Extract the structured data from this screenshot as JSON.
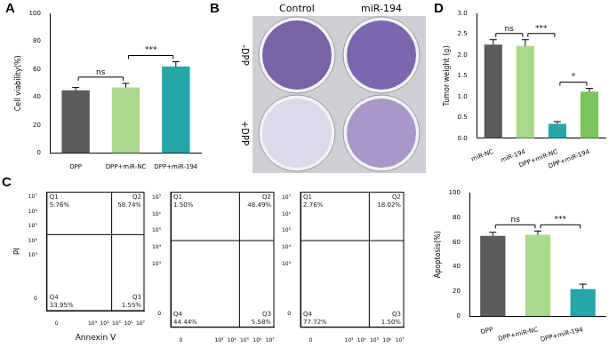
{
  "chart_data": [
    {
      "panel": "A",
      "type": "bar",
      "y_label": "Cell viability(%)",
      "categories": [
        "DPP",
        "DPP+miR-NC",
        "DPP+miR-194"
      ],
      "values": [
        45,
        47,
        62
      ],
      "errors": [
        2,
        3,
        3.5
      ],
      "colors": [
        "#5b5b5b",
        "#a9d98c",
        "#26a6a8"
      ],
      "ylim": [
        0,
        100
      ],
      "yticks": [
        0,
        20,
        40,
        60,
        80,
        100
      ],
      "grid": false,
      "significance": [
        {
          "from": 0,
          "to": 1,
          "label": "ns"
        },
        {
          "from": 1,
          "to": 2,
          "label": "***"
        }
      ]
    },
    {
      "panel": "D",
      "type": "bar",
      "y_label": "Tumor weight (g)",
      "categories": [
        "miR-NC",
        "miR-194",
        "DPP+miR-NC",
        "DPP+miR-194"
      ],
      "values": [
        2.25,
        2.22,
        0.35,
        1.12
      ],
      "errors": [
        0.12,
        0.15,
        0.05,
        0.08
      ],
      "colors": [
        "#5b5b5b",
        "#a9d98c",
        "#26a6a8",
        "#7cc55a"
      ],
      "ylim": [
        0,
        3
      ],
      "yticks": [
        {
          "value": 0,
          "label": "0.0"
        },
        {
          "value": 0.5,
          "label": "0.5"
        },
        {
          "value": 1,
          "label": "1.0"
        },
        {
          "value": 1.5,
          "label": "1.5"
        },
        {
          "value": 2,
          "label": "2.0"
        },
        {
          "value": 2.5,
          "label": "2.5"
        },
        {
          "value": 3,
          "label": "3.0"
        }
      ],
      "grid": false,
      "significance": [
        {
          "from": 0,
          "to": 1,
          "label": "ns"
        },
        {
          "from": 1,
          "to": 2,
          "label": "***"
        },
        {
          "from": 2,
          "to": 3,
          "label": "*"
        }
      ]
    },
    {
      "type": "bar",
      "y_label": "Apoptosis(%)",
      "categories": [
        "DPP",
        "DPP+miR-NC",
        "DPP+miR-194"
      ],
      "values": [
        65,
        66,
        22
      ],
      "errors": [
        3,
        3,
        4
      ],
      "colors": [
        "#5b5b5b",
        "#a9d98c",
        "#26a6a8"
      ],
      "ylim": [
        0,
        100
      ],
      "yticks": [
        0,
        20,
        40,
        60,
        80,
        100
      ],
      "grid": false,
      "significance": [
        {
          "from": 0,
          "to": 1,
          "label": "ns"
        },
        {
          "from": 1,
          "to": 2,
          "label": "***"
        }
      ]
    }
  ],
  "photo_panel": {
    "panel": "B",
    "columns": [
      "Control",
      "miR-194"
    ],
    "rows": [
      "-DPP",
      "+DPP"
    ]
  },
  "flow_panel": {
    "panel": "C",
    "x_label": "Annexin V",
    "y_label": "PI",
    "xlim": [
      -0.8,
      7.3
    ],
    "ylim": [
      -0.8,
      7.3
    ],
    "xticks": [
      0,
      {
        "value": 3,
        "label": "10³"
      },
      {
        "value": 4,
        "label": "10⁴"
      },
      {
        "value": 5,
        "label": "10⁵"
      },
      {
        "value": 6,
        "label": "10⁶"
      },
      {
        "value": 7,
        "label": "10⁷"
      }
    ],
    "yticks": [
      0,
      {
        "value": 3,
        "label": "10³"
      },
      {
        "value": 4,
        "label": "10⁴"
      },
      {
        "value": 5,
        "label": "10⁵"
      },
      {
        "value": 6,
        "label": "10⁶"
      },
      {
        "value": 7,
        "label": "10⁷"
      }
    ],
    "gate": [
      4.6,
      4.4
    ],
    "plots": [
      {
        "quadrants": [
          {
            "name": "Q1",
            "value": 5.76,
            "label": "5.76%"
          },
          {
            "name": "Q2",
            "value": 58.74,
            "label": "58.74%"
          },
          {
            "name": "Q3",
            "value": 1.55,
            "label": "1.55%"
          },
          {
            "name": "Q4",
            "value": 33.95,
            "label": "33.95%"
          }
        ]
      },
      {
        "quadrants": [
          {
            "name": "Q1",
            "value": 1.5,
            "label": "1.50%"
          },
          {
            "name": "Q2",
            "value": 48.49,
            "label": "48.49%"
          },
          {
            "name": "Q3",
            "value": 5.58,
            "label": "5.58%"
          },
          {
            "name": "Q4",
            "value": 44.44,
            "label": "44.44%"
          }
        ]
      },
      {
        "quadrants": [
          {
            "name": "Q1",
            "value": 2.76,
            "label": "2.76%"
          },
          {
            "name": "Q2",
            "value": 18.02,
            "label": "18.02%"
          },
          {
            "name": "Q3",
            "value": 1.5,
            "label": "1.50%"
          },
          {
            "name": "Q4",
            "value": 77.72,
            "label": "77.72%"
          }
        ]
      }
    ]
  }
}
